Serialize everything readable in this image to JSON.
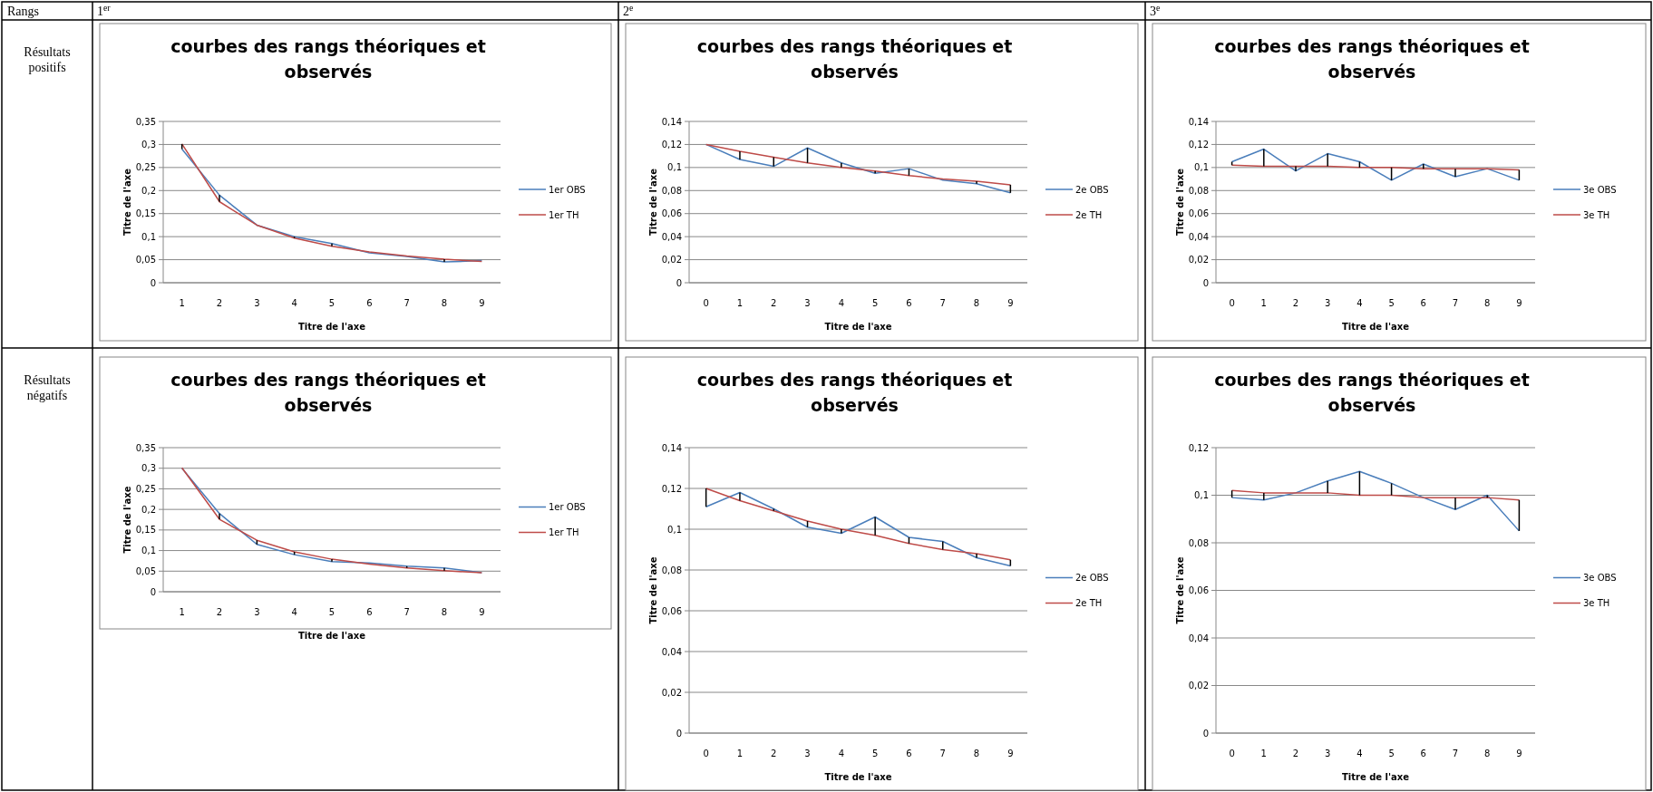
{
  "chart_data": [
    {
      "type": "other",
      "annotations": [
        "Rangs",
        "1$^{er}$",
        "2$^{e}$",
        "3$^{e}$",
        "Résultats positifs",
        "Résultats négatifs"
      ]
    },
    {
      "type": "line",
      "title": "courbes des rangs théoriques et observés",
      "xlabel": "Titre de l'axe",
      "ylabel": "Titre de l'axe",
      "categories": [
        "1",
        "2",
        "3",
        "4",
        "5",
        "6",
        "7",
        "8",
        "9"
      ],
      "series": [
        {
          "name": "1er OBS",
          "color": "#4a7ebb",
          "values": [
            0.29,
            0.19,
            0.125,
            0.1,
            0.085,
            0.065,
            0.057,
            0.045,
            0.048
          ],
          "errors": [
            [
              0.29,
              0.301
            ],
            [
              0.176,
              0.19
            ],
            null,
            [
              0.097,
              0.1
            ],
            [
              0.079,
              0.085
            ],
            null,
            null,
            [
              0.045,
              0.051
            ],
            null
          ]
        },
        {
          "name": "1er TH",
          "color": "#be4b48",
          "values": [
            0.301,
            0.176,
            0.125,
            0.097,
            0.079,
            0.067,
            0.058,
            0.051,
            0.046
          ]
        }
      ],
      "ylim": [
        0,
        0.35
      ],
      "yticks": [
        {
          "value": 0,
          "label": "0"
        },
        {
          "value": 0.05,
          "label": "0,05"
        },
        {
          "value": 0.1,
          "label": "0,1"
        },
        {
          "value": 0.15,
          "label": "0,15"
        },
        {
          "value": 0.2,
          "label": "0,2"
        },
        {
          "value": 0.25,
          "label": "0,25"
        },
        {
          "value": 0.3,
          "label": "0,3"
        },
        {
          "value": 0.35,
          "label": "0,35"
        }
      ],
      "grid": "y",
      "legend": "right"
    },
    {
      "type": "line",
      "title": "courbes des rangs théoriques et observés",
      "xlabel": "Titre de l'axe",
      "ylabel": "Titre de l'axe",
      "categories": [
        "0",
        "1",
        "2",
        "3",
        "4",
        "5",
        "6",
        "7",
        "8",
        "9"
      ],
      "series": [
        {
          "name": "2e OBS",
          "color": "#4a7ebb",
          "values": [
            0.12,
            0.107,
            0.101,
            0.117,
            0.104,
            0.095,
            0.099,
            0.089,
            0.086,
            0.078
          ],
          "errors": [
            null,
            [
              0.107,
              0.114
            ],
            [
              0.101,
              0.109
            ],
            [
              0.104,
              0.117
            ],
            [
              0.1,
              0.104
            ],
            [
              0.095,
              0.097
            ],
            [
              0.093,
              0.099
            ],
            null,
            [
              0.086,
              0.088
            ],
            [
              0.078,
              0.085
            ]
          ]
        },
        {
          "name": "2e TH",
          "color": "#be4b48",
          "values": [
            0.12,
            0.114,
            0.109,
            0.104,
            0.1,
            0.097,
            0.093,
            0.09,
            0.088,
            0.085
          ]
        }
      ],
      "ylim": [
        0,
        0.14
      ],
      "yticks": [
        {
          "value": 0,
          "label": "0"
        },
        {
          "value": 0.02,
          "label": "0,02"
        },
        {
          "value": 0.04,
          "label": "0,04"
        },
        {
          "value": 0.06,
          "label": "0,06"
        },
        {
          "value": 0.08,
          "label": "0,08"
        },
        {
          "value": 0.1,
          "label": "0,1"
        },
        {
          "value": 0.12,
          "label": "0,12"
        },
        {
          "value": 0.14,
          "label": "0,14"
        }
      ],
      "grid": "y",
      "legend": "right"
    },
    {
      "type": "line",
      "title": "courbes des rangs théoriques et observés",
      "xlabel": "Titre de l'axe",
      "ylabel": "Titre de l'axe",
      "categories": [
        "0",
        "1",
        "2",
        "3",
        "4",
        "5",
        "6",
        "7",
        "8",
        "9"
      ],
      "series": [
        {
          "name": "3e OBS",
          "color": "#4a7ebb",
          "values": [
            0.105,
            0.116,
            0.097,
            0.112,
            0.105,
            0.089,
            0.103,
            0.092,
            0.099,
            0.089
          ],
          "errors": [
            [
              0.102,
              0.105
            ],
            [
              0.101,
              0.116
            ],
            [
              0.097,
              0.101
            ],
            [
              0.101,
              0.112
            ],
            [
              0.1,
              0.105
            ],
            [
              0.089,
              0.1
            ],
            [
              0.099,
              0.103
            ],
            [
              0.092,
              0.099
            ],
            null,
            [
              0.089,
              0.098
            ]
          ]
        },
        {
          "name": "3e TH",
          "color": "#be4b48",
          "values": [
            0.102,
            0.101,
            0.101,
            0.101,
            0.1,
            0.1,
            0.099,
            0.099,
            0.099,
            0.098
          ]
        }
      ],
      "ylim": [
        0,
        0.14
      ],
      "yticks": [
        {
          "value": 0,
          "label": "0"
        },
        {
          "value": 0.02,
          "label": "0,02"
        },
        {
          "value": 0.04,
          "label": "0,04"
        },
        {
          "value": 0.06,
          "label": "0,06"
        },
        {
          "value": 0.08,
          "label": "0,08"
        },
        {
          "value": 0.1,
          "label": "0,1"
        },
        {
          "value": 0.12,
          "label": "0,12"
        },
        {
          "value": 0.14,
          "label": "0,14"
        }
      ],
      "grid": "y",
      "legend": "right"
    },
    {
      "type": "line",
      "title": "courbes des rangs théoriques et observés",
      "xlabel": "Titre de l'axe",
      "ylabel": "Titre de l'axe",
      "categories": [
        "1",
        "2",
        "3",
        "4",
        "5",
        "6",
        "7",
        "8",
        "9"
      ],
      "series": [
        {
          "name": "1er OBS",
          "color": "#4a7ebb",
          "values": [
            0.3,
            0.19,
            0.115,
            0.09,
            0.073,
            0.07,
            0.062,
            0.058,
            0.046
          ],
          "errors": [
            null,
            [
              0.176,
              0.19
            ],
            [
              0.115,
              0.125
            ],
            [
              0.09,
              0.097
            ],
            [
              0.073,
              0.079
            ],
            null,
            [
              0.058,
              0.062
            ],
            [
              0.051,
              0.058
            ],
            null
          ]
        },
        {
          "name": "1er TH",
          "color": "#be4b48",
          "values": [
            0.301,
            0.176,
            0.125,
            0.097,
            0.079,
            0.067,
            0.058,
            0.051,
            0.046
          ]
        }
      ],
      "ylim": [
        0,
        0.35
      ],
      "yticks": [
        {
          "value": 0,
          "label": "0"
        },
        {
          "value": 0.05,
          "label": "0,05"
        },
        {
          "value": 0.1,
          "label": "0,1"
        },
        {
          "value": 0.15,
          "label": "0,15"
        },
        {
          "value": 0.2,
          "label": "0,2"
        },
        {
          "value": 0.25,
          "label": "0,25"
        },
        {
          "value": 0.3,
          "label": "0,3"
        },
        {
          "value": 0.35,
          "label": "0,35"
        }
      ],
      "grid": "y",
      "legend": "right"
    },
    {
      "type": "line",
      "title": "courbes des rangs théoriques et observés",
      "xlabel": "Titre de l'axe",
      "ylabel": "Titre de l'axe",
      "categories": [
        "0",
        "1",
        "2",
        "3",
        "4",
        "5",
        "6",
        "7",
        "8",
        "9"
      ],
      "series": [
        {
          "name": "2e OBS",
          "color": "#4a7ebb",
          "values": [
            0.111,
            0.118,
            0.11,
            0.101,
            0.098,
            0.106,
            0.096,
            0.094,
            0.086,
            0.082
          ],
          "errors": [
            [
              0.111,
              0.12
            ],
            [
              0.114,
              0.118
            ],
            [
              0.109,
              0.11
            ],
            [
              0.101,
              0.104
            ],
            [
              0.098,
              0.1
            ],
            [
              0.097,
              0.106
            ],
            [
              0.093,
              0.096
            ],
            [
              0.09,
              0.094
            ],
            [
              0.086,
              0.088
            ],
            [
              0.082,
              0.085
            ]
          ]
        },
        {
          "name": "2e TH",
          "color": "#be4b48",
          "values": [
            0.12,
            0.114,
            0.109,
            0.104,
            0.1,
            0.097,
            0.093,
            0.09,
            0.088,
            0.085
          ]
        }
      ],
      "ylim": [
        0,
        0.14
      ],
      "yticks": [
        {
          "value": 0,
          "label": "0"
        },
        {
          "value": 0.02,
          "label": "0,02"
        },
        {
          "value": 0.04,
          "label": "0,04"
        },
        {
          "value": 0.06,
          "label": "0,06"
        },
        {
          "value": 0.08,
          "label": "0,08"
        },
        {
          "value": 0.1,
          "label": "0,1"
        },
        {
          "value": 0.12,
          "label": "0,12"
        },
        {
          "value": 0.14,
          "label": "0,14"
        }
      ],
      "grid": "y",
      "legend": "right"
    },
    {
      "type": "line",
      "title": "courbes des rangs théoriques et observés",
      "xlabel": "Titre de l'axe",
      "ylabel": "Titre de l'axe",
      "categories": [
        "0",
        "1",
        "2",
        "3",
        "4",
        "5",
        "6",
        "7",
        "8",
        "9"
      ],
      "series": [
        {
          "name": "3e OBS",
          "color": "#4a7ebb",
          "values": [
            0.099,
            0.098,
            0.101,
            0.106,
            0.11,
            0.105,
            0.099,
            0.094,
            0.1,
            0.085
          ],
          "errors": [
            [
              0.099,
              0.102
            ],
            [
              0.098,
              0.101
            ],
            null,
            [
              0.101,
              0.106
            ],
            [
              0.1,
              0.11
            ],
            [
              0.1,
              0.105
            ],
            null,
            [
              0.094,
              0.099
            ],
            [
              0.099,
              0.1
            ],
            [
              0.085,
              0.098
            ]
          ]
        },
        {
          "name": "3e TH",
          "color": "#be4b48",
          "values": [
            0.102,
            0.101,
            0.101,
            0.101,
            0.1,
            0.1,
            0.099,
            0.099,
            0.099,
            0.098
          ]
        }
      ],
      "ylim": [
        0,
        0.12
      ],
      "yticks": [
        {
          "value": 0,
          "label": "0"
        },
        {
          "value": 0.02,
          "label": "0,02"
        },
        {
          "value": 0.04,
          "label": "0,04"
        },
        {
          "value": 0.06,
          "label": "0,06"
        },
        {
          "value": 0.08,
          "label": "0,08"
        },
        {
          "value": 0.1,
          "label": "0,1"
        },
        {
          "value": 0.12,
          "label": "0,12"
        }
      ],
      "grid": "y",
      "legend": "right"
    }
  ]
}
